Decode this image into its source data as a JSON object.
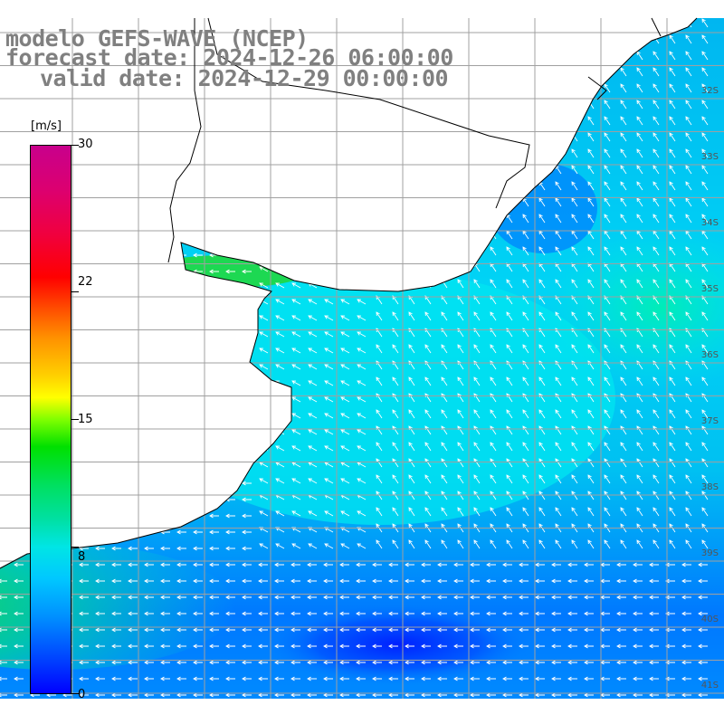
{
  "title": {
    "line1": "modelo GEFS-WAVE (NCEP)",
    "line2": "forecast date: 2024-12-26 06:00:00",
    "line3": "valid date: 2024-12-29 00:00:00"
  },
  "colorbar": {
    "unit": "[m/s]",
    "labels": [
      "30",
      "22",
      "15",
      "8",
      "0"
    ],
    "min": 0,
    "max": 30
  },
  "grid": {
    "lat_labels": [
      "32S",
      "33S",
      "34S",
      "35S",
      "36S",
      "37S",
      "38S",
      "39S",
      "40S",
      "41S"
    ]
  },
  "colors": {
    "land": "#ffffff",
    "grid": "#a0a0a0",
    "coast": "#000000",
    "arrows": "#ffffff",
    "title": "#808080"
  }
}
